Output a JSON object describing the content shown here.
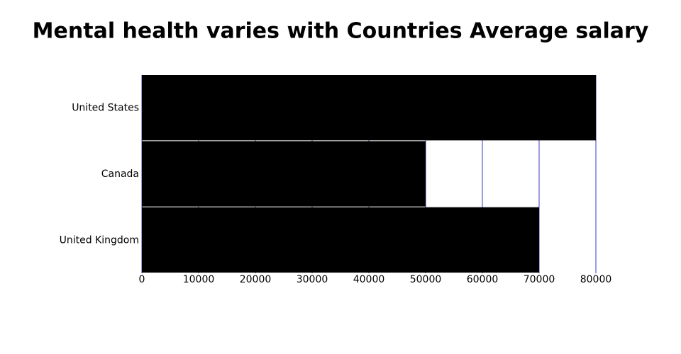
{
  "chart_data": {
    "type": "bar",
    "orientation": "horizontal",
    "title": "Mental health varies with Countries Average salary",
    "categories": [
      "United States",
      "Canada",
      "United Kingdom"
    ],
    "values": [
      80000,
      50000,
      70000
    ],
    "color": "#000000",
    "grid_color": "#7b7bd6",
    "xlim": [
      0,
      80000
    ],
    "xticks": [
      0,
      10000,
      20000,
      30000,
      40000,
      50000,
      60000,
      70000,
      80000
    ],
    "grid": true
  }
}
